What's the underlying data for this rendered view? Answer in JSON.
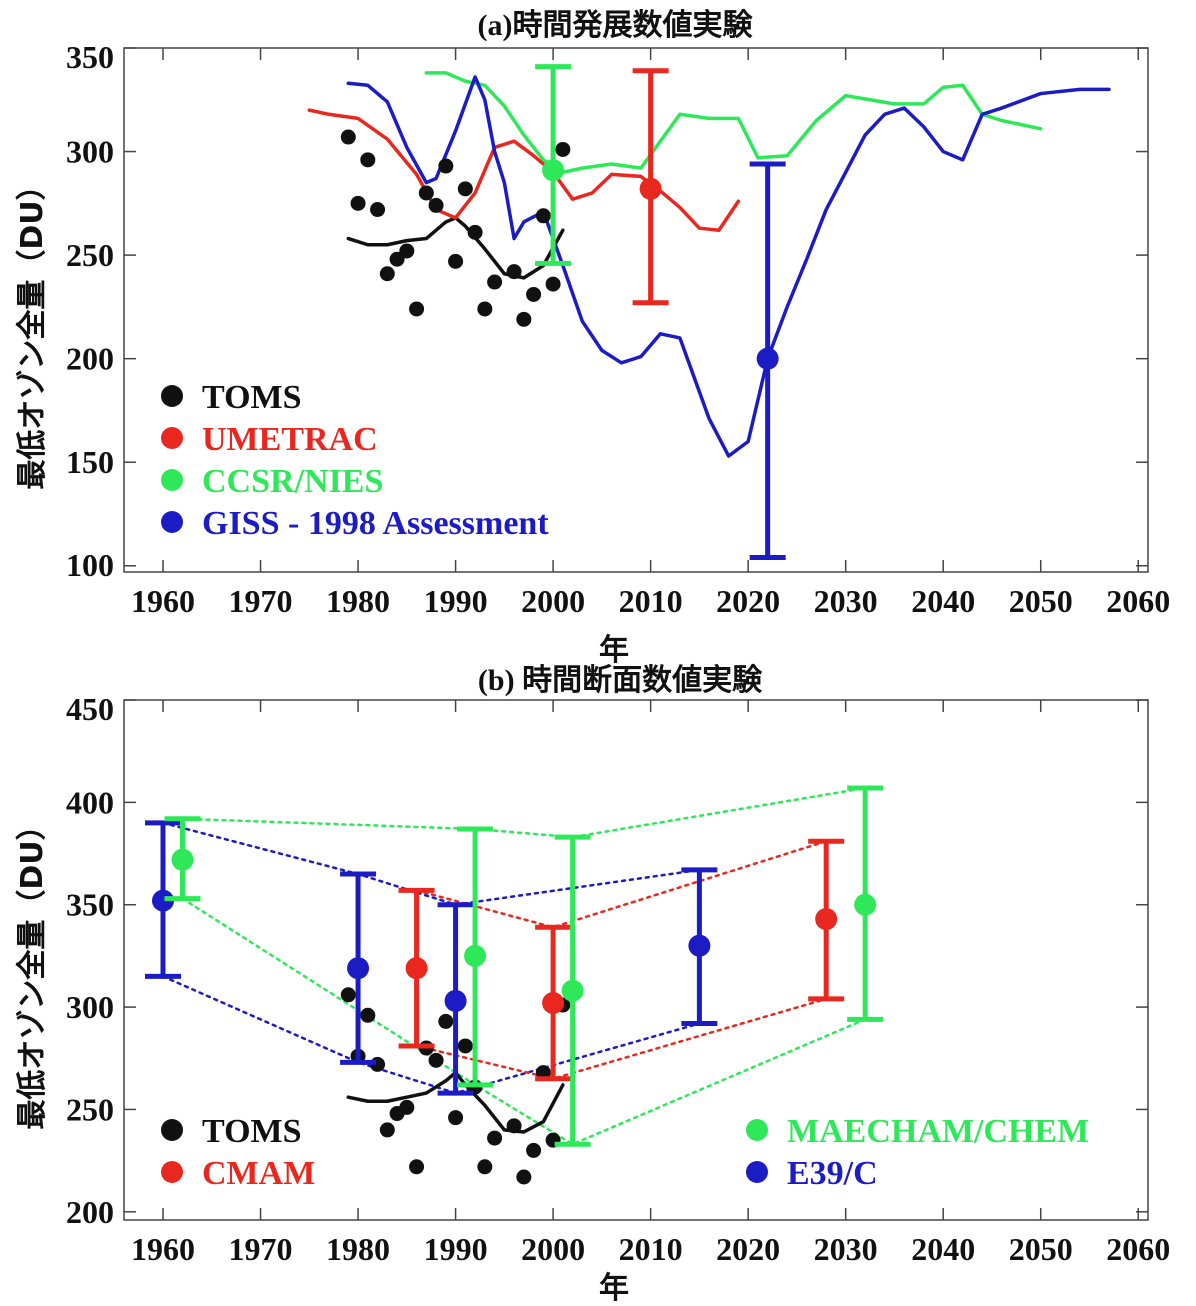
{
  "chart_data": [
    {
      "type": "line",
      "title": "(a)時間発展数値実験",
      "xlabel": "年",
      "ylabel": "最低オゾン全量（DU）",
      "xlim": [
        1956,
        2061
      ],
      "ylim": [
        97,
        350
      ],
      "xticks": [
        1960,
        1970,
        1980,
        1990,
        2000,
        2010,
        2020,
        2030,
        2040,
        2050,
        2060
      ],
      "yticks": [
        100,
        150,
        200,
        250,
        300,
        350
      ],
      "grid": false,
      "legend": "lower-left",
      "legend_entries": [
        {
          "label": "TOMS",
          "color": "#111111"
        },
        {
          "label": "UMETRAC",
          "color": "#e8281e"
        },
        {
          "label": "CCSR/NIES",
          "color": "#2ee85a"
        },
        {
          "label": "GISS - 1998 Assessment",
          "color": "#1c1cc4"
        }
      ],
      "points": {
        "color": "#111111",
        "x": [
          1979,
          1980,
          1981,
          1982,
          1983,
          1984,
          1985,
          1986,
          1987,
          1988,
          1989,
          1990,
          1991,
          1992,
          1993,
          1994,
          1996,
          1997,
          1998,
          1999,
          2000,
          2001
        ],
        "y": [
          307,
          275,
          296,
          272,
          241,
          248,
          252,
          224,
          280,
          274,
          293,
          247,
          282,
          261,
          224,
          237,
          242,
          219,
          231,
          269,
          236,
          301
        ]
      },
      "series": [
        {
          "color": "#111111",
          "x": [
            1979,
            1981,
            1983,
            1985,
            1987,
            1989,
            1990,
            1991,
            1993,
            1995,
            1997,
            1999,
            2001
          ],
          "y": [
            258,
            255,
            255,
            257,
            258,
            266,
            268,
            264,
            253,
            241,
            239,
            245,
            262
          ]
        },
        {
          "color": "#e8281e",
          "x": [
            1975,
            1977,
            1980,
            1983,
            1986,
            1988,
            1990,
            1992,
            1994,
            1996,
            1998,
            2000,
            2002,
            2004,
            2006,
            2009,
            2011,
            2013,
            2015,
            2017,
            2019
          ],
          "y": [
            320,
            318,
            316,
            306,
            289,
            272,
            268,
            280,
            302,
            305,
            298,
            290,
            277,
            280,
            289,
            288,
            281,
            273,
            263,
            262,
            276
          ]
        },
        {
          "color": "#2ee85a",
          "x": [
            1987,
            1989,
            1991,
            1993,
            1995,
            1997,
            1999,
            2001,
            2003,
            2006,
            2009,
            2011,
            2013,
            2016,
            2019,
            2021,
            2024,
            2027,
            2030,
            2035,
            2038,
            2040,
            2042,
            2044,
            2046,
            2048,
            2050
          ],
          "y": [
            338,
            338,
            334,
            332,
            322,
            308,
            296,
            290,
            292,
            294,
            292,
            305,
            318,
            316,
            316,
            297,
            298,
            315,
            327,
            323,
            323,
            331,
            332,
            318,
            315,
            313,
            311
          ]
        },
        {
          "color": "#1c1cc4",
          "x": [
            1979,
            1981,
            1983,
            1985,
            1987,
            1988,
            1990,
            1992,
            1993,
            1994,
            1995,
            1996,
            1997,
            1999,
            2001,
            2003,
            2005,
            2007,
            2009,
            2011,
            2013,
            2014,
            2016,
            2018,
            2020,
            2022,
            2024,
            2026,
            2028,
            2030,
            2032,
            2034,
            2036,
            2038,
            2040,
            2042,
            2044,
            2046,
            2050,
            2054,
            2057
          ],
          "y": [
            333,
            332,
            324,
            302,
            285,
            287,
            310,
            336,
            325,
            300,
            285,
            258,
            266,
            271,
            245,
            218,
            204,
            198,
            201,
            212,
            210,
            197,
            171,
            153,
            160,
            200,
            225,
            248,
            272,
            290,
            308,
            318,
            321,
            312,
            300,
            296,
            318,
            321,
            328,
            330,
            330
          ]
        }
      ],
      "markers": [
        {
          "color": "#2ee85a",
          "x": 2000,
          "y": 291,
          "low": 246,
          "high": 341
        },
        {
          "color": "#e8281e",
          "x": 2010,
          "y": 282,
          "low": 227,
          "high": 339
        },
        {
          "color": "#1c1cc4",
          "x": 2022,
          "y": 200,
          "low": 104,
          "high": 294
        }
      ]
    },
    {
      "type": "scatter",
      "title": "(b) 時間断面数値実験",
      "xlabel": "年",
      "ylabel": "最低オゾン全量（DU）",
      "xlim": [
        1956,
        2061
      ],
      "ylim": [
        196,
        450
      ],
      "xticks": [
        1960,
        1970,
        1980,
        1990,
        2000,
        2010,
        2020,
        2030,
        2040,
        2050,
        2060
      ],
      "yticks": [
        200,
        250,
        300,
        350,
        400,
        450
      ],
      "grid": false,
      "legend": "bottom",
      "legend_entries": [
        {
          "label": "TOMS",
          "color": "#111111"
        },
        {
          "label": "CMAM",
          "color": "#e8281e"
        },
        {
          "label": "MAECHAM/CHEM",
          "color": "#2ee85a"
        },
        {
          "label": "E39/C",
          "color": "#1c1cc4"
        }
      ],
      "points": {
        "color": "#111111",
        "x": [
          1979,
          1980,
          1981,
          1982,
          1983,
          1984,
          1985,
          1986,
          1987,
          1988,
          1989,
          1990,
          1991,
          1992,
          1993,
          1994,
          1996,
          1997,
          1998,
          1999,
          2000,
          2001
        ],
        "y": [
          306,
          276,
          296,
          272,
          240,
          248,
          251,
          222,
          280,
          274,
          293,
          246,
          281,
          261,
          222,
          236,
          242,
          217,
          230,
          268,
          235,
          301
        ]
      },
      "series": [
        {
          "color": "#111111",
          "x": [
            1979,
            1981,
            1983,
            1985,
            1987,
            1989,
            1990,
            1991,
            1993,
            1995,
            1997,
            1999,
            2001
          ],
          "y": [
            256,
            254,
            254,
            256,
            258,
            264,
            268,
            262,
            252,
            240,
            239,
            244,
            262
          ]
        }
      ],
      "markers": [
        {
          "color": "#1c1cc4",
          "x": 1960,
          "y": 352,
          "low": 315,
          "high": 390
        },
        {
          "color": "#2ee85a",
          "x": 1962,
          "y": 372,
          "low": 353,
          "high": 392
        },
        {
          "color": "#1c1cc4",
          "x": 1980,
          "y": 319,
          "low": 273,
          "high": 365
        },
        {
          "color": "#e8281e",
          "x": 1986,
          "y": 319,
          "low": 281,
          "high": 357
        },
        {
          "color": "#1c1cc4",
          "x": 1990,
          "y": 303,
          "low": 258,
          "high": 350
        },
        {
          "color": "#2ee85a",
          "x": 1992,
          "y": 325,
          "low": 262,
          "high": 387
        },
        {
          "color": "#e8281e",
          "x": 2000,
          "y": 302,
          "low": 265,
          "high": 339
        },
        {
          "color": "#2ee85a",
          "x": 2002,
          "y": 308,
          "low": 233,
          "high": 383
        },
        {
          "color": "#1c1cc4",
          "x": 2015,
          "y": 330,
          "low": 292,
          "high": 367
        },
        {
          "color": "#e8281e",
          "x": 2028,
          "y": 343,
          "low": 304,
          "high": 381
        },
        {
          "color": "#2ee85a",
          "x": 2032,
          "y": 350,
          "low": 294,
          "high": 407
        }
      ],
      "links": [
        {
          "color": "#2ee85a",
          "x": [
            1962,
            1992,
            2002,
            2032
          ],
          "y": [
            392,
            387,
            383,
            407
          ]
        },
        {
          "color": "#2ee85a",
          "x": [
            1962,
            1992,
            2002,
            2032
          ],
          "y": [
            353,
            262,
            233,
            294
          ]
        },
        {
          "color": "#1c1cc4",
          "x": [
            1960,
            1980,
            1990,
            2015
          ],
          "y": [
            390,
            365,
            350,
            367
          ]
        },
        {
          "color": "#1c1cc4",
          "x": [
            1960,
            1980,
            1990,
            2015
          ],
          "y": [
            315,
            273,
            258,
            292
          ]
        },
        {
          "color": "#e8281e",
          "x": [
            1986,
            2000,
            2028
          ],
          "y": [
            357,
            339,
            381
          ]
        },
        {
          "color": "#e8281e",
          "x": [
            1986,
            2000,
            2028
          ],
          "y": [
            281,
            265,
            304
          ]
        }
      ]
    }
  ]
}
